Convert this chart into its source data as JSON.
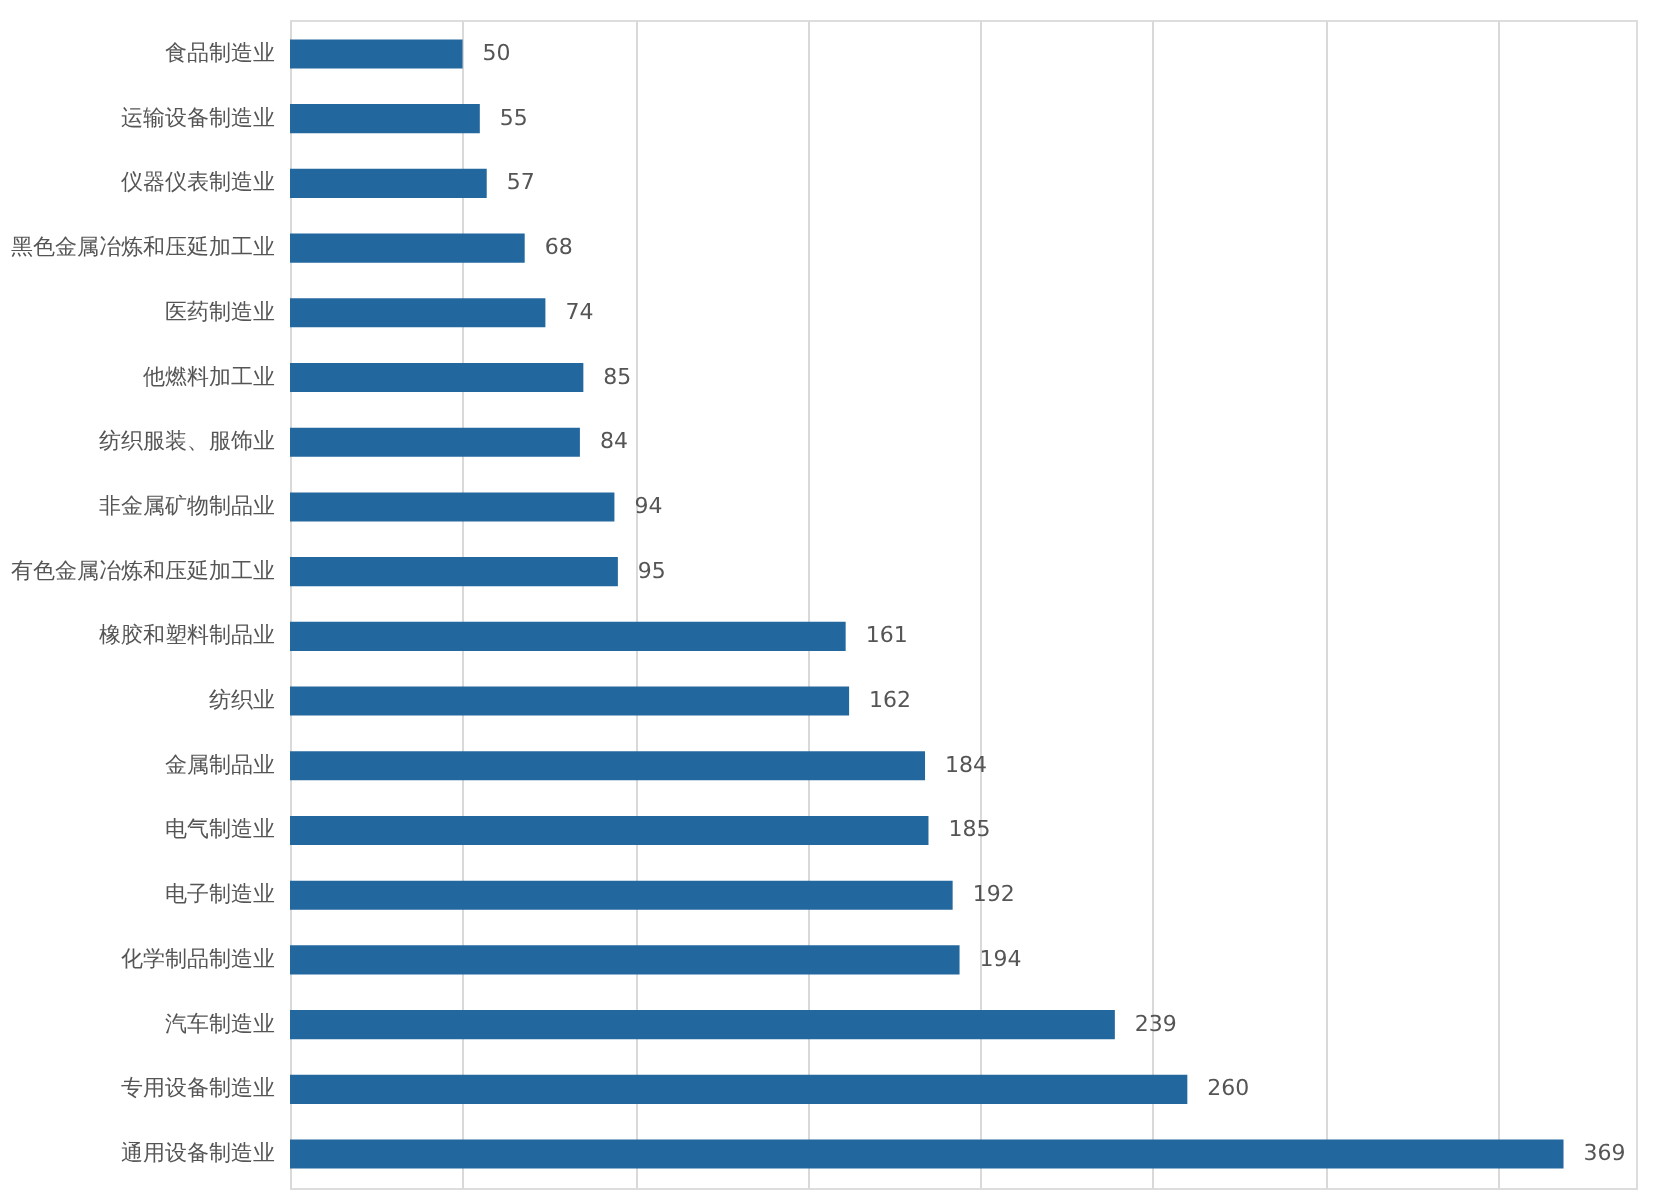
{
  "chart_data": {
    "type": "bar",
    "orientation": "horizontal",
    "categories": [
      "食品制造业",
      "运输设备制造业",
      "仪器仪表制造业",
      "黑色金属冶炼和压延加工业",
      "医药制造业",
      "他燃料加工业",
      "纺织服装、服饰业",
      "非金属矿物制品业",
      "有色金属冶炼和压延加工业",
      "橡胶和塑料制品业",
      "纺织业",
      "金属制品业",
      "电气制造业",
      "电子制造业",
      "化学制品制造业",
      "汽车制造业",
      "专用设备制造业",
      "通用设备制造业"
    ],
    "values": [
      50,
      55,
      57,
      68,
      74,
      85,
      84,
      94,
      95,
      161,
      162,
      184,
      185,
      192,
      194,
      239,
      260,
      369
    ],
    "color": "#23679f",
    "xlim": [
      0,
      390
    ],
    "xticks": [
      {
        "value": 0,
        "label": null
      },
      {
        "value": 50,
        "label": null
      },
      {
        "value": 100,
        "label": null
      },
      {
        "value": 150,
        "label": null
      },
      {
        "value": 200,
        "label": null
      },
      {
        "value": 250,
        "label": null
      },
      {
        "value": 300,
        "label": null
      },
      {
        "value": 350,
        "label": null
      }
    ],
    "grid": "x",
    "tick_labels": "y",
    "data_labels": true
  }
}
